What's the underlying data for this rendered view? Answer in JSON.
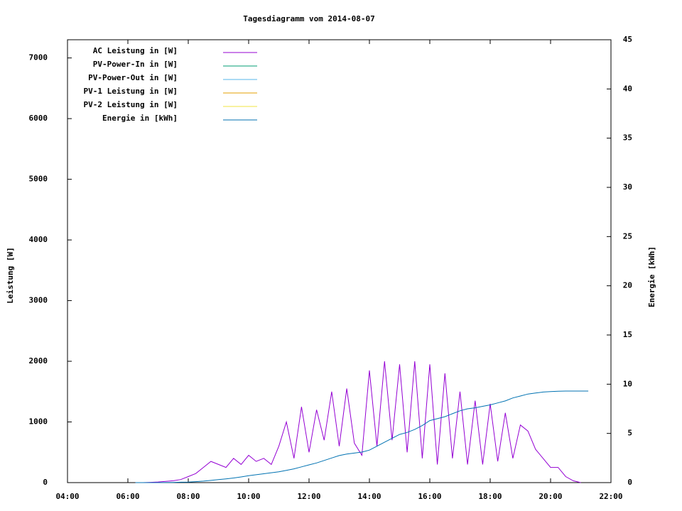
{
  "chart_data": {
    "type": "line",
    "title": "Tagesdiagramm vom 2014-08-07",
    "y_label": "Leistung [W]",
    "y2_label": "Energie [kWh]",
    "x": [
      6.25,
      6.5,
      6.75,
      7,
      7.25,
      7.5,
      7.75,
      8,
      8.25,
      8.5,
      8.75,
      9,
      9.25,
      9.5,
      9.75,
      10,
      10.25,
      10.5,
      10.75,
      11,
      11.25,
      11.5,
      11.75,
      12,
      12.25,
      12.5,
      12.75,
      13,
      13.25,
      13.5,
      13.75,
      14,
      14.25,
      14.5,
      14.75,
      15,
      15.25,
      15.5,
      15.75,
      16,
      16.25,
      16.5,
      16.75,
      17,
      17.25,
      17.5,
      17.75,
      18,
      18.25,
      18.5,
      18.75,
      19,
      19.25,
      19.5,
      19.75,
      20,
      20.25,
      20.5,
      20.75,
      21,
      21.25
    ],
    "xlim": [
      4,
      22
    ],
    "xticks": [
      {
        "value": 4,
        "label": "04:00"
      },
      {
        "value": 6,
        "label": "06:00"
      },
      {
        "value": 8,
        "label": "08:00"
      },
      {
        "value": 10,
        "label": "10:00"
      },
      {
        "value": 12,
        "label": "12:00"
      },
      {
        "value": 14,
        "label": "14:00"
      },
      {
        "value": 16,
        "label": "16:00"
      },
      {
        "value": 18,
        "label": "18:00"
      },
      {
        "value": 20,
        "label": "20:00"
      },
      {
        "value": 22,
        "label": "22:00"
      }
    ],
    "ylim": [
      0,
      7300
    ],
    "yticks": [
      0,
      1000,
      2000,
      3000,
      4000,
      5000,
      6000,
      7000
    ],
    "y2lim": [
      0,
      45
    ],
    "y2ticks": [
      0,
      5,
      10,
      15,
      20,
      25,
      30,
      35,
      40,
      45
    ],
    "legend": "top-left",
    "series": [
      {
        "name": "AC Leistung in [W]",
        "color": "#9400d3",
        "values": [
          0,
          0,
          5,
          10,
          20,
          30,
          50,
          100,
          150,
          250,
          350,
          300,
          250,
          400,
          300,
          450,
          350,
          400,
          300,
          600,
          1000,
          400,
          1250,
          500,
          1200,
          700,
          1500,
          600,
          1550,
          650,
          450,
          1850,
          600,
          2000,
          700,
          1950,
          500,
          2000,
          400,
          1950,
          300,
          1800,
          400,
          1500,
          300,
          1350,
          300,
          1300,
          350,
          1150,
          400,
          950,
          850,
          550,
          400,
          250,
          250,
          100,
          30,
          0,
          null
        ]
      },
      {
        "name": "PV-Power-In in [W]",
        "color": "#009e73",
        "values": [
          null,
          null,
          null,
          null,
          null,
          null,
          null,
          null,
          null,
          null,
          null,
          null,
          null,
          null,
          null,
          null,
          null,
          null,
          null,
          null,
          null,
          null,
          null,
          null,
          null,
          null,
          null,
          null,
          null,
          null,
          null,
          null,
          null,
          null,
          null,
          null,
          null,
          null,
          null,
          null,
          null,
          null,
          null,
          null,
          null,
          null,
          null,
          null,
          null,
          null,
          null,
          null,
          null,
          null,
          null,
          null,
          null,
          null,
          null,
          null,
          null
        ]
      },
      {
        "name": "PV-Power-Out in [W]",
        "color": "#56b4e9",
        "values": [
          null,
          null,
          null,
          null,
          null,
          null,
          null,
          null,
          null,
          null,
          null,
          null,
          null,
          null,
          null,
          null,
          null,
          null,
          null,
          null,
          null,
          null,
          null,
          null,
          null,
          null,
          null,
          null,
          null,
          null,
          null,
          null,
          null,
          null,
          null,
          null,
          null,
          null,
          null,
          null,
          null,
          null,
          null,
          null,
          null,
          null,
          null,
          null,
          null,
          null,
          null,
          null,
          null,
          null,
          null,
          null,
          null,
          null,
          null,
          null,
          null
        ]
      },
      {
        "name": "PV-1 Leistung in [W]",
        "color": "#e69f00",
        "values": [
          null,
          null,
          null,
          null,
          null,
          null,
          null,
          null,
          null,
          null,
          null,
          null,
          null,
          null,
          null,
          null,
          null,
          null,
          null,
          null,
          null,
          null,
          null,
          null,
          null,
          null,
          null,
          null,
          null,
          null,
          null,
          null,
          null,
          null,
          null,
          null,
          null,
          null,
          null,
          null,
          null,
          null,
          null,
          null,
          null,
          null,
          null,
          null,
          null,
          null,
          null,
          null,
          null,
          null,
          null,
          null,
          null,
          null,
          null,
          null,
          null
        ]
      },
      {
        "name": "PV-2 Leistung in [W]",
        "color": "#f0e442",
        "values": [
          null,
          null,
          null,
          null,
          null,
          null,
          null,
          null,
          null,
          null,
          null,
          null,
          null,
          null,
          null,
          null,
          null,
          null,
          null,
          null,
          null,
          null,
          null,
          null,
          null,
          null,
          null,
          null,
          null,
          null,
          null,
          null,
          null,
          null,
          null,
          null,
          null,
          null,
          null,
          null,
          null,
          null,
          null,
          null,
          null,
          null,
          null,
          null,
          null,
          null,
          null,
          null,
          null,
          null,
          null,
          null,
          null,
          null,
          null,
          null,
          null
        ]
      },
      {
        "name": "Energie in [kWh]",
        "color": "#0072b2",
        "axis": "y2",
        "values": [
          0,
          0,
          0,
          0,
          0.01,
          0.02,
          0.04,
          0.06,
          0.1,
          0.15,
          0.22,
          0.3,
          0.38,
          0.47,
          0.58,
          0.7,
          0.8,
          0.9,
          1.0,
          1.1,
          1.25,
          1.4,
          1.6,
          1.8,
          2.0,
          2.25,
          2.5,
          2.75,
          2.9,
          3.0,
          3.1,
          3.3,
          3.7,
          4.1,
          4.5,
          4.9,
          5.1,
          5.4,
          5.8,
          6.3,
          6.5,
          6.7,
          7.0,
          7.3,
          7.5,
          7.6,
          7.75,
          7.9,
          8.1,
          8.3,
          8.6,
          8.8,
          9.0,
          9.1,
          9.2,
          9.25,
          9.28,
          9.3,
          9.3,
          9.3,
          9.3
        ]
      }
    ]
  }
}
